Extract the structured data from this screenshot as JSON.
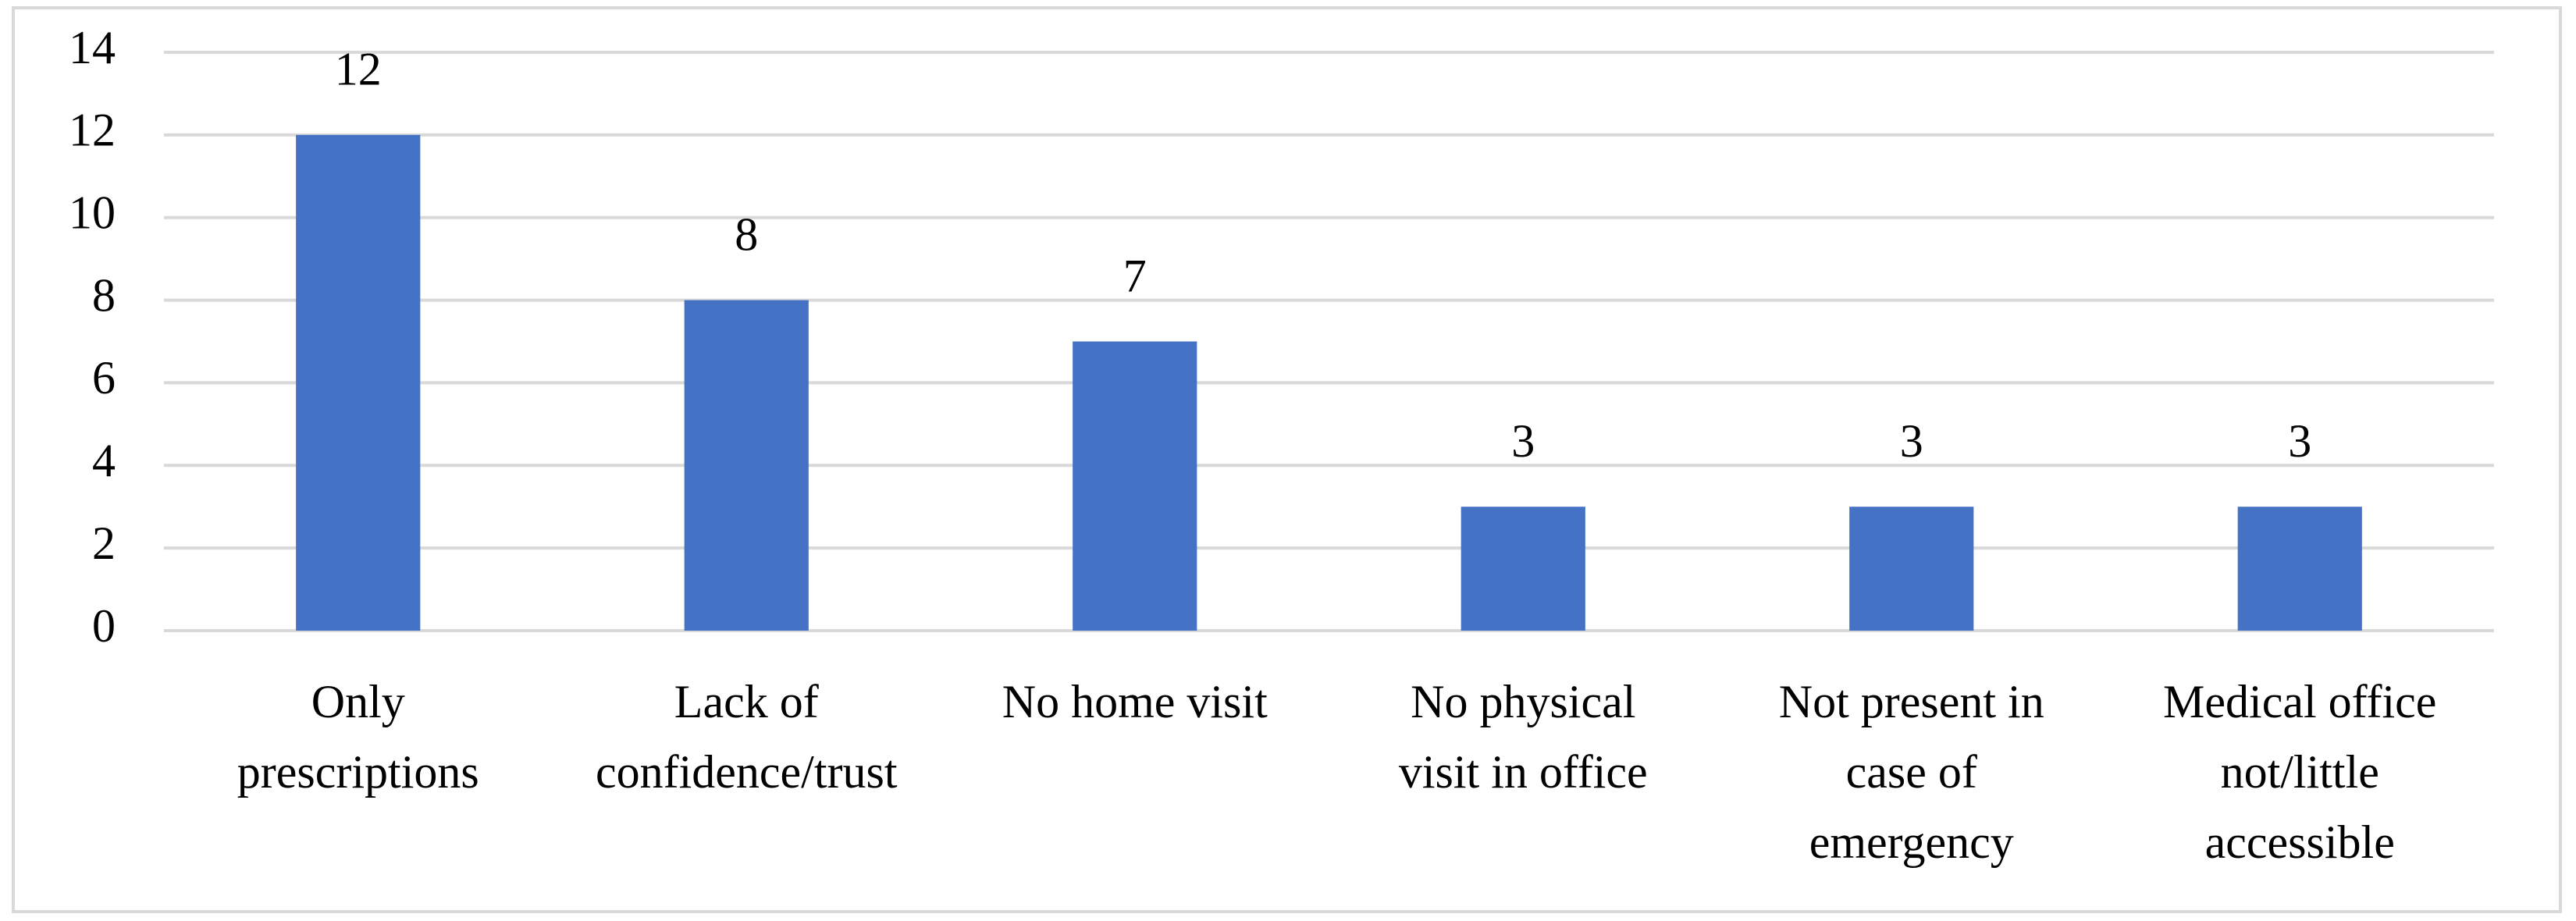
{
  "chart_data": {
    "type": "bar",
    "categories": [
      [
        "Only",
        "prescriptions"
      ],
      [
        "Lack of",
        "confidence/trust"
      ],
      [
        "No home visit"
      ],
      [
        "No physical",
        "visit in office"
      ],
      [
        "Not present in",
        "case of",
        "emergency"
      ],
      [
        "Medical office",
        "not/little",
        "accessible"
      ]
    ],
    "values": [
      12,
      8,
      7,
      3,
      3,
      3
    ],
    "color": "#4472c4",
    "ylim": [
      0,
      14
    ],
    "yticks": [
      0,
      2,
      4,
      6,
      8,
      10,
      12,
      14
    ],
    "grid": true
  }
}
